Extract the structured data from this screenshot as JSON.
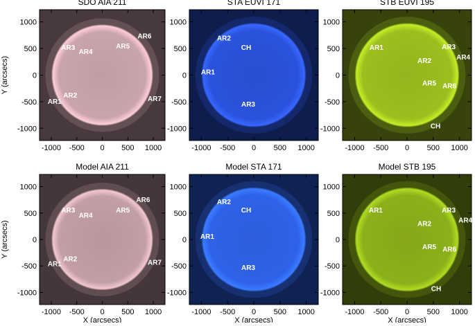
{
  "chart_data": [
    {
      "type": "image",
      "title": "SDO AIA 211",
      "color": "#caa4ac",
      "ylabel": "Y (arcsecs)",
      "xlim": [
        -1230,
        1230
      ],
      "ylim": [
        -1230,
        1230
      ],
      "xticks": [
        -1000,
        -500,
        0,
        500,
        1000
      ],
      "yticks": [
        -1000,
        -500,
        0,
        500,
        1000
      ],
      "annotations": [
        {
          "text": "AR6",
          "x": 828,
          "y": 744
        },
        {
          "text": "AR3",
          "x": -669,
          "y": 526
        },
        {
          "text": "AR4",
          "x": -325,
          "y": 449
        },
        {
          "text": "AR5",
          "x": 404,
          "y": 551
        },
        {
          "text": "AR2",
          "x": -629,
          "y": -372
        },
        {
          "text": "AR1",
          "x": -934,
          "y": -487
        },
        {
          "text": "AR7",
          "x": 1026,
          "y": -436
        }
      ]
    },
    {
      "type": "image",
      "title": "STA EUVI 171",
      "color": "#2b52dc",
      "xlim": [
        -1230,
        1230
      ],
      "ylim": [
        -1230,
        1230
      ],
      "xticks": [
        -1000,
        -500,
        0,
        500,
        1000
      ],
      "yticks": [
        -1000,
        -500,
        0,
        500,
        1000
      ],
      "annotations": [
        {
          "text": "AR2",
          "x": -570,
          "y": 705
        },
        {
          "text": "CH",
          "x": -146,
          "y": 526
        },
        {
          "text": "AR1",
          "x": -874,
          "y": 64
        },
        {
          "text": "AR3",
          "x": -106,
          "y": -538
        }
      ]
    },
    {
      "type": "image",
      "title": "STB EUVI 195",
      "color": "#9cbe1e",
      "xlim": [
        -1230,
        1230
      ],
      "ylim": [
        -1230,
        1230
      ],
      "xticks": [
        -1000,
        -500,
        0,
        500,
        1000
      ],
      "yticks": [
        -1000,
        -500,
        0,
        500,
        1000
      ],
      "annotations": [
        {
          "text": "AR1",
          "x": -583,
          "y": 526
        },
        {
          "text": "AR3",
          "x": 795,
          "y": 538
        },
        {
          "text": "AR4",
          "x": 1073,
          "y": 346
        },
        {
          "text": "AR2",
          "x": 331,
          "y": 282
        },
        {
          "text": "AR5",
          "x": 424,
          "y": -141
        },
        {
          "text": "AR6",
          "x": 808,
          "y": -192
        },
        {
          "text": "CH",
          "x": 543,
          "y": -949
        }
      ]
    },
    {
      "type": "image",
      "title": "Model AIA 211",
      "color": "#c29ea6",
      "xlabel": "X (arcsecs)",
      "ylabel": "Y (arcsecs)",
      "xlim": [
        -1230,
        1230
      ],
      "ylim": [
        -1230,
        1230
      ],
      "xticks": [
        -1000,
        -500,
        0,
        500,
        1000
      ],
      "yticks": [
        -1000,
        -500,
        0,
        500,
        1000
      ],
      "annotations": [
        {
          "text": "AR6",
          "x": 801,
          "y": 756
        },
        {
          "text": "AR3",
          "x": -669,
          "y": 564
        },
        {
          "text": "AR5",
          "x": 404,
          "y": 564
        },
        {
          "text": "AR4",
          "x": -325,
          "y": 462
        },
        {
          "text": "AR2",
          "x": -629,
          "y": -359
        },
        {
          "text": "AR1",
          "x": -934,
          "y": -449
        },
        {
          "text": "AR7",
          "x": 1026,
          "y": -423
        }
      ]
    },
    {
      "type": "image",
      "title": "Model STA 171",
      "color": "#2e62e8",
      "xlabel": "X (arcsecs)",
      "xlim": [
        -1230,
        1230
      ],
      "ylim": [
        -1230,
        1230
      ],
      "xticks": [
        -1000,
        -500,
        0,
        500,
        1000
      ],
      "yticks": [
        -1000,
        -500,
        0,
        500,
        1000
      ],
      "annotations": [
        {
          "text": "AR2",
          "x": -570,
          "y": 718
        },
        {
          "text": "CH",
          "x": -146,
          "y": 564
        },
        {
          "text": "AR1",
          "x": -887,
          "y": 64
        },
        {
          "text": "AR3",
          "x": -106,
          "y": -526
        }
      ]
    },
    {
      "type": "image",
      "title": "Model STB 195",
      "color": "#8cb01a",
      "xlabel": "X (arcsecs)",
      "xlim": [
        -1230,
        1230
      ],
      "ylim": [
        -1230,
        1230
      ],
      "xticks": [
        -1000,
        -500,
        0,
        500,
        1000
      ],
      "yticks": [
        -1000,
        -500,
        0,
        500,
        1000
      ],
      "annotations": [
        {
          "text": "AR1",
          "x": -596,
          "y": 564
        },
        {
          "text": "AR3",
          "x": 795,
          "y": 564
        },
        {
          "text": "AR4",
          "x": 1113,
          "y": 372
        },
        {
          "text": "AR2",
          "x": 331,
          "y": 308
        },
        {
          "text": "AR5",
          "x": 424,
          "y": -128
        },
        {
          "text": "AR6",
          "x": 808,
          "y": -179
        },
        {
          "text": "CH",
          "x": 556,
          "y": -923
        }
      ]
    }
  ]
}
